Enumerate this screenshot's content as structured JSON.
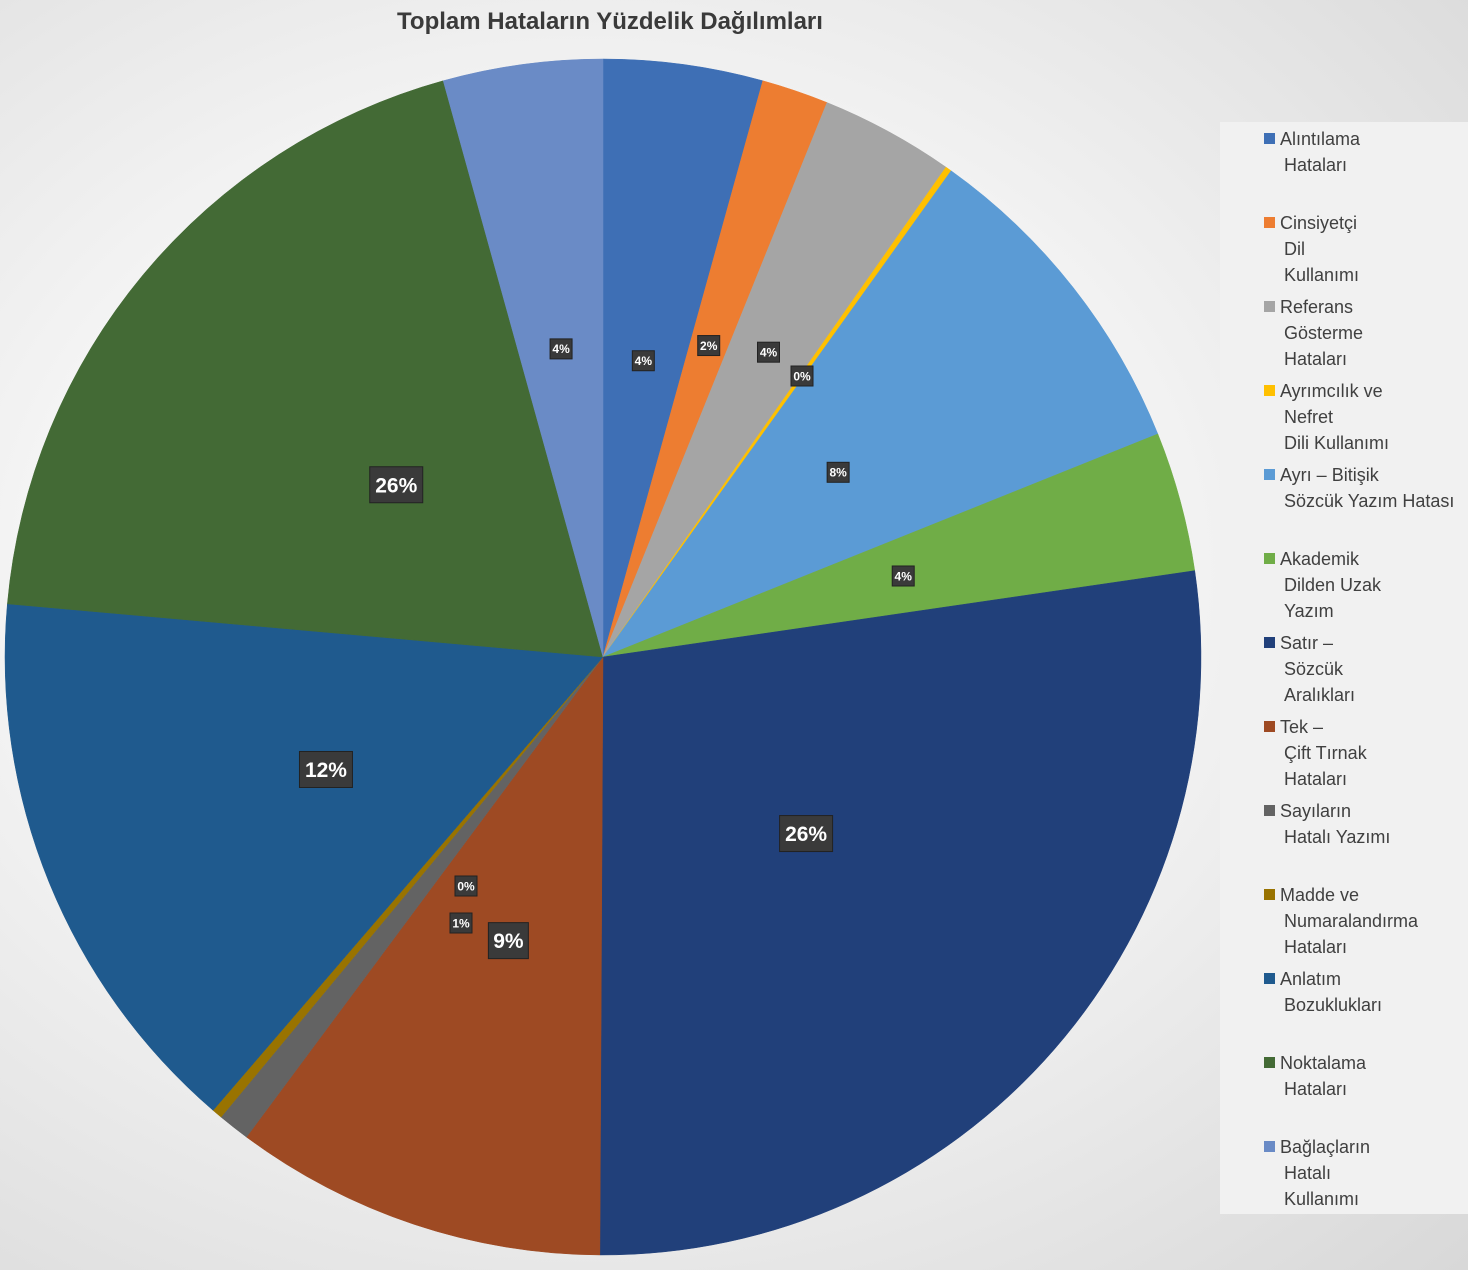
{
  "chart_data": {
    "type": "pie",
    "title": "Toplam Hataların Yüzdelik Dağılımları",
    "slices": [
      {
        "name": "Alıntılama Hataları",
        "value": 4,
        "label": "4%",
        "color": "#3e6fb5"
      },
      {
        "name": "Cinsiyetçi Dil Kullanımı",
        "value": 2,
        "label": "2%",
        "color": "#ed7d31"
      },
      {
        "name": "Referans Gösterme Hataları",
        "value": 4,
        "label": "4%",
        "color": "#a5a5a5"
      },
      {
        "name": "Ayrımcılık ve Nefret Dili Kullanımı",
        "value": 0,
        "label": "0%",
        "color": "#ffc000"
      },
      {
        "name": "Ayrı – Bitişik Sözcük Yazım Hatası",
        "value": 8,
        "label": "8%",
        "color": "#5b9bd5"
      },
      {
        "name": "Akademik Dilden Uzak Yazım",
        "value": 4,
        "label": "4%",
        "color": "#70ad47"
      },
      {
        "name": "Satır – Sözcük Aralıkları",
        "value": 26,
        "label": "26%",
        "color": "#21407a"
      },
      {
        "name": "Tek – Çift Tırnak Hataları",
        "value": 9,
        "label": "9%",
        "color": "#9e4a23"
      },
      {
        "name": "Sayıların Hatalı Yazımı",
        "value": 1,
        "label": "1%",
        "color": "#636363"
      },
      {
        "name": "Madde ve Numaralandırma Hataları",
        "value": 0,
        "label": "0%",
        "color": "#997300"
      },
      {
        "name": "Anlatım Bozuklukları",
        "value": 12,
        "label": "12%",
        "color": "#1f5a8e"
      },
      {
        "name": "Noktalama Hataları",
        "value": 26,
        "label": "26%",
        "color": "#436a35"
      },
      {
        "name": "Bağlaçların Hatalı Kullanımı",
        "value": 4,
        "label": "4%",
        "color": "#6a8bc6"
      }
    ],
    "legend_position": "right"
  },
  "legend": [
    {
      "lines": [
        "Alıntılama",
        "Hataları"
      ]
    },
    {
      "lines": [
        "Cinsiyetçi",
        "Dil",
        "Kullanımı"
      ]
    },
    {
      "lines": [
        "Referans",
        "Gösterme",
        "Hataları"
      ]
    },
    {
      "lines": [
        "Ayrımcılık ve",
        "Nefret",
        "Dili Kullanımı"
      ]
    },
    {
      "lines": [
        "Ayrı – Bitişik",
        "Sözcük Yazım Hatası"
      ]
    },
    {
      "lines": [
        "Akademik",
        "Dilden Uzak",
        "Yazım"
      ]
    },
    {
      "lines": [
        "Satır –",
        "Sözcük",
        "Aralıkları"
      ]
    },
    {
      "lines": [
        "Tek –",
        "Çift Tırnak",
        "Hataları"
      ]
    },
    {
      "lines": [
        "Sayıların",
        "Hatalı Yazımı"
      ]
    },
    {
      "lines": [
        "Madde ve",
        "Numaralandırma",
        "Hataları"
      ]
    },
    {
      "lines": [
        "Anlatım",
        "Bozuklukları"
      ]
    },
    {
      "lines": [
        "Noktalama",
        "Hataları"
      ]
    },
    {
      "lines": [
        "Bağlaçların",
        "Hatalı",
        "Kullanımı"
      ]
    }
  ]
}
